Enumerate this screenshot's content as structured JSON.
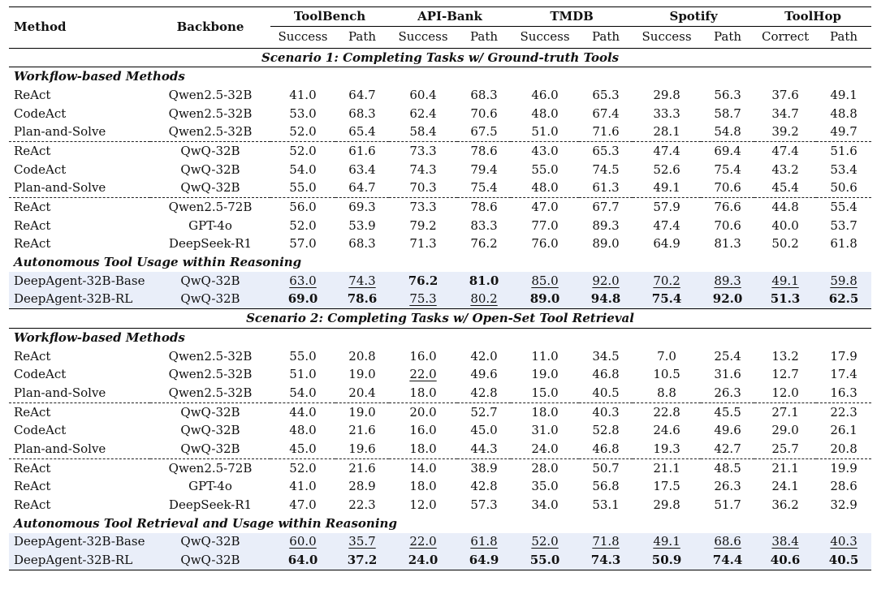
{
  "headers": {
    "method": "Method",
    "backbone": "Backbone",
    "groups": [
      "ToolBench",
      "API-Bank",
      "TMDB",
      "Spotify",
      "ToolHop"
    ],
    "sub": [
      "Success",
      "Path",
      "Success",
      "Path",
      "Success",
      "Path",
      "Success",
      "Path",
      "Correct",
      "Path"
    ]
  },
  "scenarios": [
    {
      "title": "Scenario 1: Completing Tasks w/ Ground-truth Tools",
      "workflow_label": "Workflow-based Methods",
      "autonomous_label": "Autonomous Tool Usage within Reasoning",
      "workflow_blocks": [
        [
          {
            "method": "ReAct",
            "backbone": "Qwen2.5-32B",
            "values": [
              "41.0",
              "64.7",
              "60.4",
              "68.3",
              "46.0",
              "65.3",
              "29.8",
              "56.3",
              "37.6",
              "49.1"
            ]
          },
          {
            "method": "CodeAct",
            "backbone": "Qwen2.5-32B",
            "values": [
              "53.0",
              "68.3",
              "62.4",
              "70.6",
              "48.0",
              "67.4",
              "33.3",
              "58.7",
              "34.7",
              "48.8"
            ]
          },
          {
            "method": "Plan-and-Solve",
            "backbone": "Qwen2.5-32B",
            "values": [
              "52.0",
              "65.4",
              "58.4",
              "67.5",
              "51.0",
              "71.6",
              "28.1",
              "54.8",
              "39.2",
              "49.7"
            ]
          }
        ],
        [
          {
            "method": "ReAct",
            "backbone": "QwQ-32B",
            "values": [
              "52.0",
              "61.6",
              "73.3",
              "78.6",
              "43.0",
              "65.3",
              "47.4",
              "69.4",
              "47.4",
              "51.6"
            ]
          },
          {
            "method": "CodeAct",
            "backbone": "QwQ-32B",
            "values": [
              "54.0",
              "63.4",
              "74.3",
              "79.4",
              "55.0",
              "74.5",
              "52.6",
              "75.4",
              "43.2",
              "53.4"
            ]
          },
          {
            "method": "Plan-and-Solve",
            "backbone": "QwQ-32B",
            "values": [
              "55.0",
              "64.7",
              "70.3",
              "75.4",
              "48.0",
              "61.3",
              "49.1",
              "70.6",
              "45.4",
              "50.6"
            ]
          }
        ],
        [
          {
            "method": "ReAct",
            "backbone": "Qwen2.5-72B",
            "values": [
              "56.0",
              "69.3",
              "73.3",
              "78.6",
              "47.0",
              "67.7",
              "57.9",
              "76.6",
              "44.8",
              "55.4"
            ]
          },
          {
            "method": "ReAct",
            "backbone": "GPT-4o",
            "values": [
              "52.0",
              "53.9",
              "79.2",
              "83.3",
              "77.0",
              "89.3",
              "47.4",
              "70.6",
              "40.0",
              "53.7"
            ]
          },
          {
            "method": "ReAct",
            "backbone": "DeepSeek-R1",
            "values": [
              "57.0",
              "68.3",
              "71.3",
              "76.2",
              "76.0",
              "89.0",
              "64.9",
              "81.3",
              "50.2",
              "61.8"
            ]
          }
        ]
      ],
      "autonomous_rows": [
        {
          "method": "DeepAgent-32B-Base",
          "backbone": "QwQ-32B",
          "values": [
            "63.0",
            "74.3",
            "76.2",
            "81.0",
            "85.0",
            "92.0",
            "70.2",
            "89.3",
            "49.1",
            "59.8"
          ],
          "fmt": [
            "u",
            "u",
            "b",
            "b",
            "u",
            "u",
            "u",
            "u",
            "u",
            "u"
          ]
        },
        {
          "method": "DeepAgent-32B-RL",
          "backbone": "QwQ-32B",
          "values": [
            "69.0",
            "78.6",
            "75.3",
            "80.2",
            "89.0",
            "94.8",
            "75.4",
            "92.0",
            "51.3",
            "62.5"
          ],
          "fmt": [
            "b",
            "b",
            "u",
            "u",
            "b",
            "b",
            "b",
            "b",
            "b",
            "b"
          ]
        }
      ]
    },
    {
      "title": "Scenario 2: Completing Tasks w/ Open-Set Tool Retrieval",
      "workflow_label": "Workflow-based Methods",
      "autonomous_label": "Autonomous Tool Retrieval and Usage within Reasoning",
      "workflow_blocks": [
        [
          {
            "method": "ReAct",
            "backbone": "Qwen2.5-32B",
            "values": [
              "55.0",
              "20.8",
              "16.0",
              "42.0",
              "11.0",
              "34.5",
              "7.0",
              "25.4",
              "13.2",
              "17.9"
            ]
          },
          {
            "method": "CodeAct",
            "backbone": "Qwen2.5-32B",
            "values": [
              "51.0",
              "19.0",
              "22.0",
              "49.6",
              "19.0",
              "46.8",
              "10.5",
              "31.6",
              "12.7",
              "17.4"
            ],
            "fmt": [
              "",
              "",
              "u",
              "",
              "",
              "",
              "",
              "",
              "",
              ""
            ]
          },
          {
            "method": "Plan-and-Solve",
            "backbone": "Qwen2.5-32B",
            "values": [
              "54.0",
              "20.4",
              "18.0",
              "42.8",
              "15.0",
              "40.5",
              "8.8",
              "26.3",
              "12.0",
              "16.3"
            ]
          }
        ],
        [
          {
            "method": "ReAct",
            "backbone": "QwQ-32B",
            "values": [
              "44.0",
              "19.0",
              "20.0",
              "52.7",
              "18.0",
              "40.3",
              "22.8",
              "45.5",
              "27.1",
              "22.3"
            ]
          },
          {
            "method": "CodeAct",
            "backbone": "QwQ-32B",
            "values": [
              "48.0",
              "21.6",
              "16.0",
              "45.0",
              "31.0",
              "52.8",
              "24.6",
              "49.6",
              "29.0",
              "26.1"
            ]
          },
          {
            "method": "Plan-and-Solve",
            "backbone": "QwQ-32B",
            "values": [
              "45.0",
              "19.6",
              "18.0",
              "44.3",
              "24.0",
              "46.8",
              "19.3",
              "42.7",
              "25.7",
              "20.8"
            ]
          }
        ],
        [
          {
            "method": "ReAct",
            "backbone": "Qwen2.5-72B",
            "values": [
              "52.0",
              "21.6",
              "14.0",
              "38.9",
              "28.0",
              "50.7",
              "21.1",
              "48.5",
              "21.1",
              "19.9"
            ]
          },
          {
            "method": "ReAct",
            "backbone": "GPT-4o",
            "values": [
              "41.0",
              "28.9",
              "18.0",
              "42.8",
              "35.0",
              "56.8",
              "17.5",
              "26.3",
              "24.1",
              "28.6"
            ]
          },
          {
            "method": "ReAct",
            "backbone": "DeepSeek-R1",
            "values": [
              "47.0",
              "22.3",
              "12.0",
              "57.3",
              "34.0",
              "53.1",
              "29.8",
              "51.7",
              "36.2",
              "32.9"
            ]
          }
        ]
      ],
      "autonomous_rows": [
        {
          "method": "DeepAgent-32B-Base",
          "backbone": "QwQ-32B",
          "values": [
            "60.0",
            "35.7",
            "22.0",
            "61.8",
            "52.0",
            "71.8",
            "49.1",
            "68.6",
            "38.4",
            "40.3"
          ],
          "fmt": [
            "u",
            "u",
            "u",
            "u",
            "u",
            "u",
            "u",
            "u",
            "u",
            "u"
          ]
        },
        {
          "method": "DeepAgent-32B-RL",
          "backbone": "QwQ-32B",
          "values": [
            "64.0",
            "37.2",
            "24.0",
            "64.9",
            "55.0",
            "74.3",
            "50.9",
            "74.4",
            "40.6",
            "40.5"
          ],
          "fmt": [
            "b",
            "b",
            "b",
            "b",
            "b",
            "b",
            "b",
            "b",
            "b",
            "b"
          ]
        }
      ]
    }
  ]
}
